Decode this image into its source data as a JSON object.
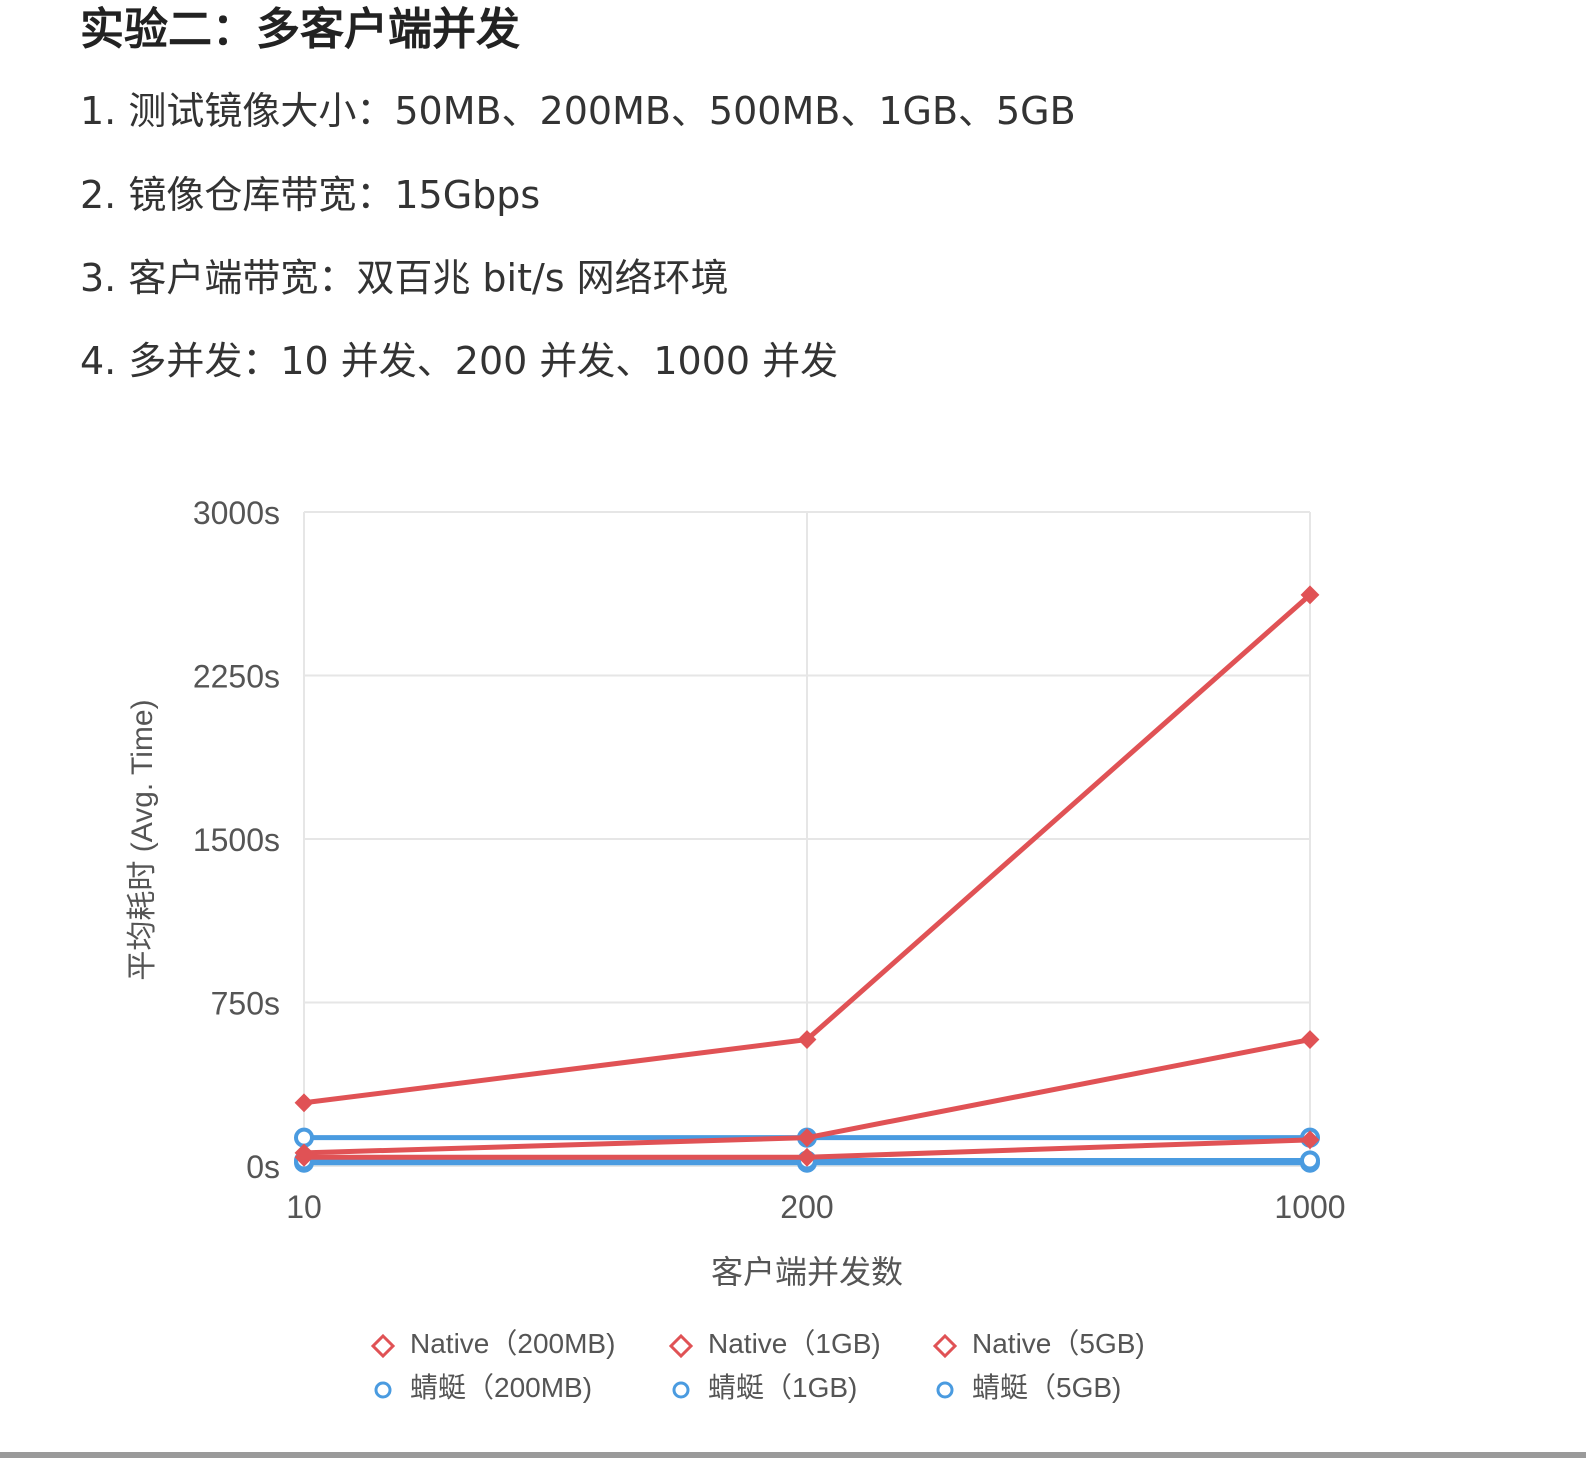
{
  "heading": "实验二：多客户端并发",
  "list": [
    "1. 测试镜像大小：50MB、200MB、500MB、1GB、5GB",
    "2. 镜像仓库带宽：15Gbps",
    "3. 客户端带宽：双百兆 bit/s 网络环境",
    "4. 多并发：10 并发、200 并发、1000 并发"
  ],
  "colors": {
    "native": "#e05255",
    "dragonfly": "#4a9be0",
    "grid": "#e6e6e6",
    "axis_text": "#555555"
  },
  "chart_data": {
    "type": "line",
    "x": [
      "10",
      "200",
      "1000"
    ],
    "xlabel": "客户端并发数",
    "ylabel": "平均耗时 (Avg. Time)",
    "ylim": [
      0,
      3000
    ],
    "yticks": [
      "0s",
      "750s",
      "1500s",
      "2250s",
      "3000s"
    ],
    "ytick_values": [
      0,
      750,
      1500,
      2250,
      3000
    ],
    "grid": true,
    "legend_position": "bottom",
    "series": [
      {
        "name": "Native（200MB)",
        "group": "native",
        "values": [
          40,
          40,
          120
        ]
      },
      {
        "name": "Native（1GB)",
        "group": "native",
        "values": [
          60,
          130,
          580
        ]
      },
      {
        "name": "Native（5GB)",
        "group": "native",
        "values": [
          290,
          580,
          2620
        ]
      },
      {
        "name": "蜻蜓（200MB)",
        "group": "dragonfly",
        "values": [
          15,
          15,
          15
        ]
      },
      {
        "name": "蜻蜓（1GB)",
        "group": "dragonfly",
        "values": [
          25,
          25,
          25
        ]
      },
      {
        "name": "蜻蜓（5GB)",
        "group": "dragonfly",
        "values": [
          130,
          130,
          130
        ]
      }
    ]
  }
}
